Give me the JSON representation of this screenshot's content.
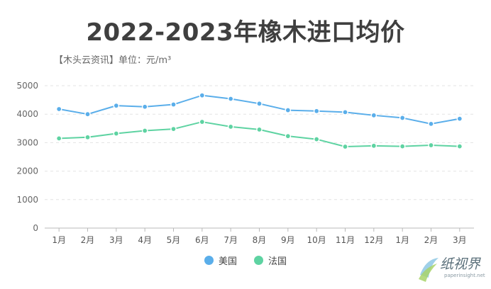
{
  "title": "2022-2023年橡木进口均价",
  "subtitle": "【木头云资讯】单位：元/m³",
  "chart_data": {
    "type": "line",
    "categories": [
      "1月",
      "2月",
      "3月",
      "4月",
      "5月",
      "6月",
      "7月",
      "8月",
      "9月",
      "10月",
      "11月",
      "12月",
      "1月",
      "2月",
      "3月"
    ],
    "yticks": [
      "0",
      "1000",
      "2000",
      "3000",
      "4000",
      "5000"
    ],
    "ylim": [
      0,
      5000
    ],
    "grid": true,
    "legend_position": "bottom",
    "series": [
      {
        "name": "美国",
        "color": "#5aaeea",
        "values": [
          4180,
          4000,
          4300,
          4260,
          4340,
          4660,
          4540,
          4370,
          4140,
          4110,
          4070,
          3960,
          3870,
          3660,
          3840
        ]
      },
      {
        "name": "法国",
        "color": "#5ed3a2",
        "values": [
          3150,
          3190,
          3320,
          3420,
          3480,
          3730,
          3560,
          3460,
          3230,
          3120,
          2860,
          2890,
          2870,
          2910,
          2870
        ]
      }
    ]
  },
  "watermark": {
    "text": "纸视界",
    "url": "paperinsight.net"
  }
}
